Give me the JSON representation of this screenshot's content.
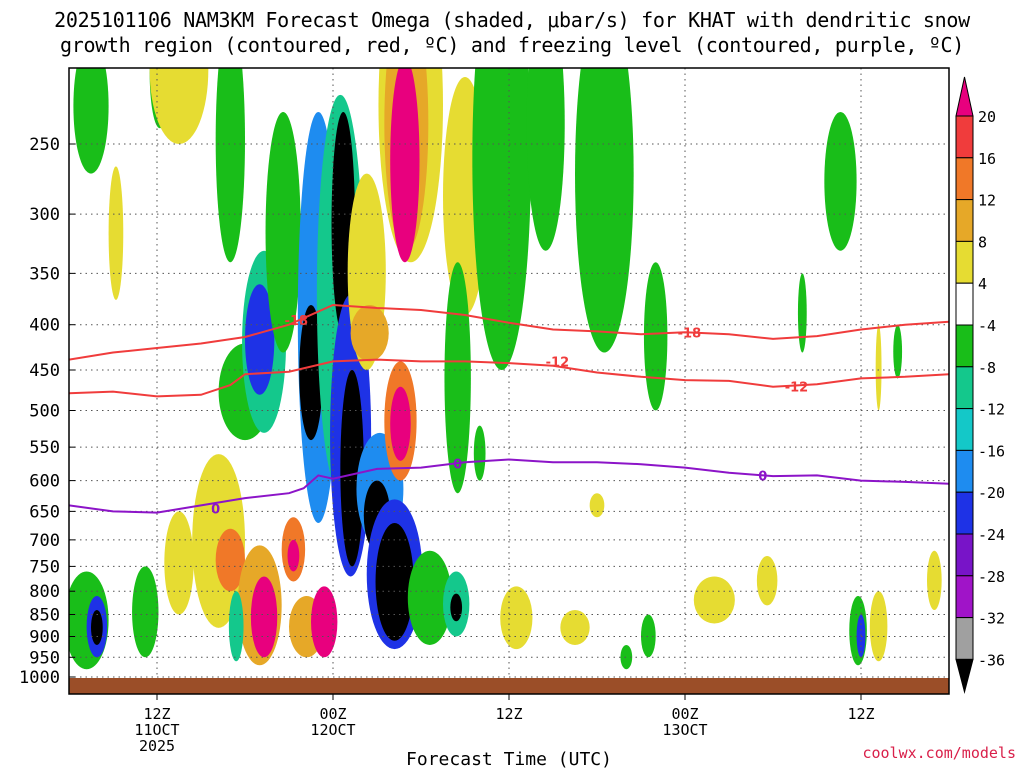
{
  "title_line1": "2025101106 NAM3KM Forecast Omega (shaded, μbar/s) for KHAT with dendritic snow",
  "title_line2": "growth region (contoured, red, ºC) and freezing level (contoured, purple, ºC)",
  "credit": "coolwx.com/models",
  "chart_data": {
    "type": "heatmap",
    "xlabel": "Forecast Time (UTC)",
    "x_range_hours": [
      0,
      60
    ],
    "x_ticks": [
      {
        "hour": 6,
        "lines": [
          "12Z",
          "11OCT",
          "2025"
        ]
      },
      {
        "hour": 18,
        "lines": [
          "00Z",
          "12OCT"
        ]
      },
      {
        "hour": 30,
        "lines": [
          "12Z"
        ]
      },
      {
        "hour": 42,
        "lines": [
          "00Z",
          "13OCT"
        ]
      },
      {
        "hour": 54,
        "lines": [
          "12Z"
        ]
      }
    ],
    "y_ticks_hpa": [
      250,
      300,
      350,
      400,
      450,
      500,
      550,
      600,
      650,
      700,
      750,
      800,
      850,
      900,
      950,
      1000
    ],
    "y_range_hpa": [
      200,
      1010
    ],
    "y_scale": "log-pressure",
    "grid": true,
    "colorbar": {
      "labels": [
        "20",
        "16",
        "12",
        "8",
        "4",
        "-4",
        "-8",
        "-12",
        "-16",
        "-20",
        "-24",
        "-28",
        "-32",
        "-36"
      ],
      "colors": [
        "#e8007e",
        "#f03c3c",
        "#f07828",
        "#e6a828",
        "#e6dc32",
        "#ffffff",
        "#19be19",
        "#14c88c",
        "#14c8c8",
        "#1e8cf0",
        "#1e32e6",
        "#7814c8",
        "#a014c8",
        "#a0a0a0",
        "#000000"
      ],
      "top_cap_color": "#e8007e",
      "bottom_cap_color": "#000000"
    },
    "contours": [
      {
        "kind": "dendritic",
        "level": -18,
        "label": "-18",
        "color": "#f03c3c",
        "points": [
          [
            0,
            438
          ],
          [
            3,
            430
          ],
          [
            6,
            425
          ],
          [
            9,
            420
          ],
          [
            12,
            413
          ],
          [
            15,
            400
          ],
          [
            18,
            380
          ],
          [
            21,
            383
          ],
          [
            24,
            385
          ],
          [
            27,
            390
          ],
          [
            30,
            398
          ],
          [
            33,
            405
          ],
          [
            36,
            407
          ],
          [
            39,
            410
          ],
          [
            42,
            408
          ],
          [
            45,
            410
          ],
          [
            48,
            415
          ],
          [
            51,
            412
          ],
          [
            54,
            405
          ],
          [
            57,
            400
          ],
          [
            60,
            397
          ]
        ]
      },
      {
        "kind": "dendritic",
        "level": -12,
        "label": "-12",
        "color": "#f03c3c",
        "points": [
          [
            0,
            478
          ],
          [
            3,
            476
          ],
          [
            6,
            482
          ],
          [
            9,
            480
          ],
          [
            11,
            468
          ],
          [
            12,
            455
          ],
          [
            15,
            452
          ],
          [
            18,
            440
          ],
          [
            21,
            438
          ],
          [
            24,
            440
          ],
          [
            27,
            440
          ],
          [
            30,
            442
          ],
          [
            33,
            445
          ],
          [
            36,
            453
          ],
          [
            39,
            458
          ],
          [
            42,
            462
          ],
          [
            45,
            463
          ],
          [
            48,
            470
          ],
          [
            51,
            467
          ],
          [
            54,
            460
          ],
          [
            57,
            458
          ],
          [
            60,
            455
          ]
        ]
      },
      {
        "kind": "freezing",
        "level": 0,
        "label": "0",
        "color": "#8c14c8",
        "points": [
          [
            0,
            640
          ],
          [
            3,
            650
          ],
          [
            6,
            652
          ],
          [
            9,
            640
          ],
          [
            12,
            628
          ],
          [
            15,
            620
          ],
          [
            16,
            612
          ],
          [
            17,
            592
          ],
          [
            18,
            597
          ],
          [
            21,
            582
          ],
          [
            24,
            580
          ],
          [
            27,
            572
          ],
          [
            30,
            568
          ],
          [
            33,
            572
          ],
          [
            36,
            572
          ],
          [
            39,
            575
          ],
          [
            42,
            580
          ],
          [
            45,
            588
          ],
          [
            48,
            593
          ],
          [
            51,
            592
          ],
          [
            54,
            600
          ],
          [
            57,
            602
          ],
          [
            60,
            605
          ]
        ]
      }
    ],
    "contour_labels": [
      {
        "text": "-18",
        "hour": 15.5,
        "hpa": 395,
        "color": "#f03c3c"
      },
      {
        "text": "-12",
        "hour": 33.3,
        "hpa": 440,
        "color": "#f03c3c"
      },
      {
        "text": "-18",
        "hour": 42.3,
        "hpa": 408,
        "color": "#f03c3c"
      },
      {
        "text": "-12",
        "hour": 49.6,
        "hpa": 470,
        "color": "#f03c3c"
      },
      {
        "text": "0",
        "hour": 10.0,
        "hpa": 645,
        "color": "#8c14c8"
      },
      {
        "text": "0",
        "hour": 26.5,
        "hpa": 574,
        "color": "#8c14c8"
      },
      {
        "text": "0",
        "hour": 47.3,
        "hpa": 592,
        "color": "#8c14c8"
      }
    ],
    "blobs": [
      {
        "hour": 3.2,
        "hpa": 320,
        "rx": 0.5,
        "ry": 55,
        "value": 5
      },
      {
        "hour": 1.5,
        "hpa": 230,
        "rx": 1.2,
        "ry": 40,
        "value": -5
      },
      {
        "hour": 6.2,
        "hpa": 210,
        "rx": 0.7,
        "ry": 30,
        "value": -5
      },
      {
        "hour": 11.0,
        "hpa": 260,
        "rx": 1.0,
        "ry": 80,
        "value": -5
      },
      {
        "hour": 12.0,
        "hpa": 480,
        "rx": 1.8,
        "ry": 60,
        "value": -5
      },
      {
        "hour": 13.3,
        "hpa": 430,
        "rx": 1.5,
        "ry": 100,
        "value": -10
      },
      {
        "hour": 13.0,
        "hpa": 420,
        "rx": 1.0,
        "ry": 60,
        "value": -22
      },
      {
        "hour": 14.6,
        "hpa": 330,
        "rx": 1.2,
        "ry": 100,
        "value": -8
      },
      {
        "hour": 17.0,
        "hpa": 450,
        "rx": 1.4,
        "ry": 220,
        "value": -20
      },
      {
        "hour": 16.5,
        "hpa": 460,
        "rx": 0.8,
        "ry": 80,
        "value": -36
      },
      {
        "hour": 18.5,
        "hpa": 420,
        "rx": 1.6,
        "ry": 200,
        "value": -10
      },
      {
        "hour": 18.7,
        "hpa": 320,
        "rx": 0.8,
        "ry": 90,
        "value": -36
      },
      {
        "hour": 19.2,
        "hpa": 570,
        "rx": 1.4,
        "ry": 200,
        "value": -24
      },
      {
        "hour": 19.3,
        "hpa": 600,
        "rx": 0.8,
        "ry": 150,
        "value": -36
      },
      {
        "hour": 21.2,
        "hpa": 620,
        "rx": 1.6,
        "ry": 90,
        "value": -20
      },
      {
        "hour": 21.0,
        "hpa": 660,
        "rx": 0.9,
        "ry": 60,
        "value": -36
      },
      {
        "hour": 22.2,
        "hpa": 780,
        "rx": 1.9,
        "ry": 150,
        "value": -24
      },
      {
        "hour": 22.2,
        "hpa": 790,
        "rx": 1.3,
        "ry": 120,
        "value": -36
      },
      {
        "hour": 20.3,
        "hpa": 360,
        "rx": 1.3,
        "ry": 90,
        "value": 5
      },
      {
        "hour": 23.3,
        "hpa": 230,
        "rx": 2.2,
        "ry": 110,
        "value": 5
      },
      {
        "hour": 23.0,
        "hpa": 250,
        "rx": 1.5,
        "ry": 80,
        "value": 10
      },
      {
        "hour": 22.9,
        "hpa": 270,
        "rx": 1.0,
        "ry": 70,
        "value": 20
      },
      {
        "hour": 22.6,
        "hpa": 520,
        "rx": 1.1,
        "ry": 80,
        "value": 12
      },
      {
        "hour": 22.6,
        "hpa": 520,
        "rx": 0.7,
        "ry": 50,
        "value": 20
      },
      {
        "hour": 27.0,
        "hpa": 300,
        "rx": 1.5,
        "ry": 90,
        "value": 5
      },
      {
        "hour": 20.5,
        "hpa": 410,
        "rx": 1.3,
        "ry": 30,
        "value": 10
      },
      {
        "hour": 24.6,
        "hpa": 820,
        "rx": 1.5,
        "ry": 100,
        "value": -6
      },
      {
        "hour": 26.4,
        "hpa": 830,
        "rx": 0.9,
        "ry": 70,
        "value": -10
      },
      {
        "hour": 26.4,
        "hpa": 835,
        "rx": 0.4,
        "ry": 30,
        "value": -36
      },
      {
        "hour": 29.5,
        "hpa": 300,
        "rx": 2.0,
        "ry": 150,
        "value": -5
      },
      {
        "hour": 32.5,
        "hpa": 250,
        "rx": 1.3,
        "ry": 80,
        "value": -5
      },
      {
        "hour": 36.5,
        "hpa": 300,
        "rx": 2.0,
        "ry": 130,
        "value": -5
      },
      {
        "hour": 40.0,
        "hpa": 420,
        "rx": 0.8,
        "ry": 80,
        "value": -5
      },
      {
        "hour": 52.6,
        "hpa": 280,
        "rx": 1.1,
        "ry": 50,
        "value": -5
      },
      {
        "hour": 50.0,
        "hpa": 390,
        "rx": 0.3,
        "ry": 40,
        "value": -5
      },
      {
        "hour": 56.5,
        "hpa": 430,
        "rx": 0.3,
        "ry": 30,
        "value": -5
      },
      {
        "hour": 7.5,
        "hpa": 210,
        "rx": 2.0,
        "ry": 40,
        "value": 5
      },
      {
        "hour": 1.2,
        "hpa": 870,
        "rx": 1.5,
        "ry": 110,
        "value": -8
      },
      {
        "hour": 1.9,
        "hpa": 880,
        "rx": 0.7,
        "ry": 70,
        "value": -24
      },
      {
        "hour": 1.9,
        "hpa": 880,
        "rx": 0.4,
        "ry": 40,
        "value": -36
      },
      {
        "hour": 5.2,
        "hpa": 850,
        "rx": 0.9,
        "ry": 100,
        "value": -8
      },
      {
        "hour": 7.5,
        "hpa": 750,
        "rx": 1.0,
        "ry": 100,
        "value": 4
      },
      {
        "hour": 10.2,
        "hpa": 720,
        "rx": 1.8,
        "ry": 160,
        "value": 6
      },
      {
        "hour": 11.0,
        "hpa": 740,
        "rx": 1.0,
        "ry": 60,
        "value": 12
      },
      {
        "hour": 13.0,
        "hpa": 840,
        "rx": 1.5,
        "ry": 130,
        "value": 10
      },
      {
        "hour": 13.3,
        "hpa": 860,
        "rx": 0.9,
        "ry": 90,
        "value": 20
      },
      {
        "hour": 15.3,
        "hpa": 720,
        "rx": 0.8,
        "ry": 60,
        "value": 12
      },
      {
        "hour": 15.3,
        "hpa": 730,
        "rx": 0.4,
        "ry": 30,
        "value": 20
      },
      {
        "hour": 16.2,
        "hpa": 880,
        "rx": 1.2,
        "ry": 70,
        "value": 10
      },
      {
        "hour": 17.4,
        "hpa": 870,
        "rx": 0.9,
        "ry": 80,
        "value": 20
      },
      {
        "hour": 11.4,
        "hpa": 880,
        "rx": 0.5,
        "ry": 80,
        "value": -10
      },
      {
        "hour": 30.5,
        "hpa": 860,
        "rx": 1.1,
        "ry": 70,
        "value": 4
      },
      {
        "hour": 34.5,
        "hpa": 880,
        "rx": 1.0,
        "ry": 40,
        "value": 4
      },
      {
        "hour": 38.0,
        "hpa": 950,
        "rx": 0.4,
        "ry": 30,
        "value": -6
      },
      {
        "hour": 39.5,
        "hpa": 900,
        "rx": 0.5,
        "ry": 50,
        "value": -6
      },
      {
        "hour": 44.0,
        "hpa": 820,
        "rx": 1.4,
        "ry": 50,
        "value": 4
      },
      {
        "hour": 47.6,
        "hpa": 780,
        "rx": 0.7,
        "ry": 50,
        "value": 4
      },
      {
        "hour": 53.8,
        "hpa": 890,
        "rx": 0.6,
        "ry": 80,
        "value": -8
      },
      {
        "hour": 54.0,
        "hpa": 900,
        "rx": 0.3,
        "ry": 50,
        "value": -24
      },
      {
        "hour": 55.2,
        "hpa": 880,
        "rx": 0.6,
        "ry": 80,
        "value": 4
      },
      {
        "hour": 59.0,
        "hpa": 780,
        "rx": 0.5,
        "ry": 60,
        "value": 4
      },
      {
        "hour": 55.2,
        "hpa": 450,
        "rx": 0.2,
        "ry": 50,
        "value": 4
      },
      {
        "hour": 36.0,
        "hpa": 640,
        "rx": 0.5,
        "ry": 20,
        "value": 4
      },
      {
        "hour": 26.5,
        "hpa": 480,
        "rx": 0.9,
        "ry": 140,
        "value": -6
      },
      {
        "hour": 28.0,
        "hpa": 560,
        "rx": 0.4,
        "ry": 40,
        "value": -6
      }
    ]
  }
}
